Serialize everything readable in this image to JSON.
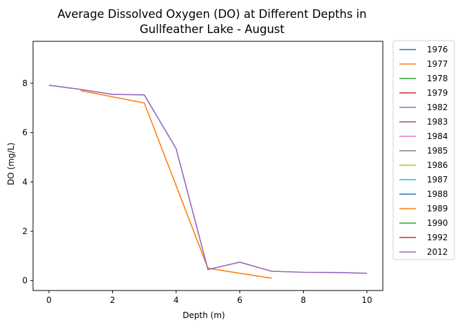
{
  "chart_data": {
    "type": "line",
    "title_line1": "Average Dissolved Oxygen (DO) at Different Depths in",
    "title_line2": "Gullfeather Lake - August",
    "xlabel": "Depth (m)",
    "ylabel": "DO (mg/L)",
    "xlim": [
      -0.5,
      10.5
    ],
    "ylim": [
      -0.4,
      9.7
    ],
    "x_ticks": [
      "0",
      "2",
      "4",
      "6",
      "8",
      "10"
    ],
    "y_ticks": [
      "0",
      "2",
      "4",
      "6",
      "8"
    ],
    "x_tick_values": [
      0,
      2,
      4,
      6,
      8,
      10
    ],
    "y_tick_values": [
      0,
      2,
      4,
      6,
      8
    ],
    "grid": false,
    "legend_position": "outside-right",
    "series": [
      {
        "name": "1976",
        "color": "#1f77b4",
        "x": [],
        "y": []
      },
      {
        "name": "1977",
        "color": "#ff7f0e",
        "x": [],
        "y": []
      },
      {
        "name": "1978",
        "color": "#2ca02c",
        "x": [],
        "y": []
      },
      {
        "name": "1979",
        "color": "#d62728",
        "x": [],
        "y": []
      },
      {
        "name": "1982",
        "color": "#9467bd",
        "x": [],
        "y": []
      },
      {
        "name": "1983",
        "color": "#8c564b",
        "x": [],
        "y": []
      },
      {
        "name": "1984",
        "color": "#e377c2",
        "x": [],
        "y": []
      },
      {
        "name": "1985",
        "color": "#7f7f7f",
        "x": [],
        "y": []
      },
      {
        "name": "1986",
        "color": "#bcbd22",
        "x": [],
        "y": []
      },
      {
        "name": "1987",
        "color": "#17becf",
        "x": [],
        "y": []
      },
      {
        "name": "1988",
        "color": "#1f77b4",
        "x": [],
        "y": []
      },
      {
        "name": "1989",
        "color": "#ff7f0e",
        "x": [
          1,
          3,
          5,
          7
        ],
        "y": [
          7.7,
          7.2,
          0.5,
          0.1
        ]
      },
      {
        "name": "1990",
        "color": "#2ca02c",
        "x": [],
        "y": []
      },
      {
        "name": "1992",
        "color": "#d62728",
        "x": [],
        "y": []
      },
      {
        "name": "2012",
        "color": "#9467bd",
        "x": [
          0,
          1,
          2,
          3,
          4,
          5,
          6,
          7,
          8,
          9,
          10
        ],
        "y": [
          7.92,
          7.75,
          7.55,
          7.53,
          5.35,
          0.45,
          0.75,
          0.38,
          0.34,
          0.33,
          0.3
        ]
      }
    ]
  }
}
